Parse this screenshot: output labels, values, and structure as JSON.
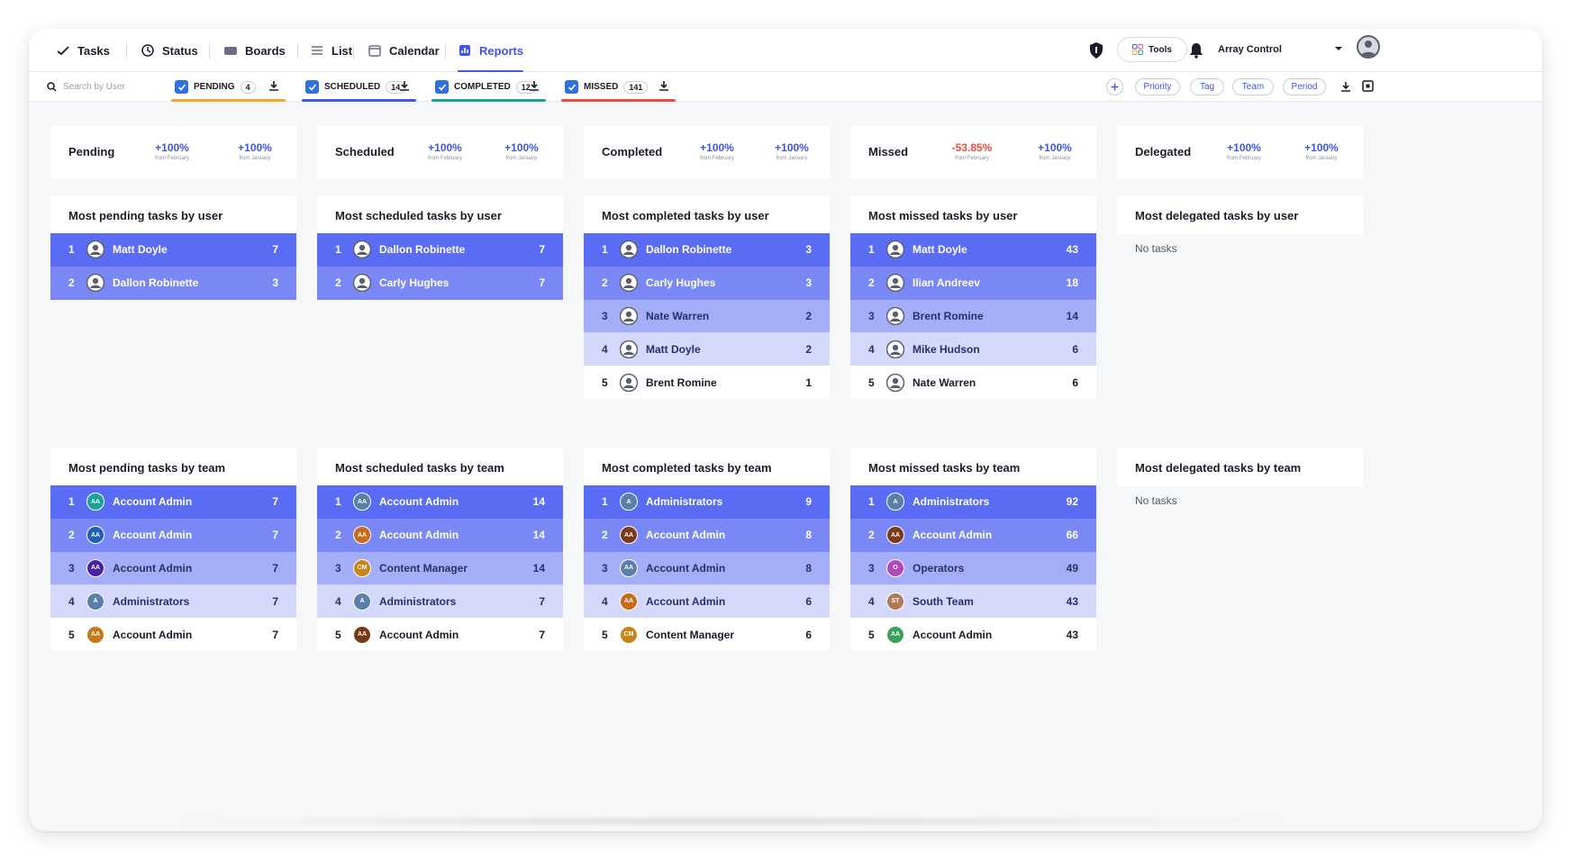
{
  "nav": {
    "tabs": [
      {
        "label": "Tasks",
        "icon": "check-icon"
      },
      {
        "label": "Status",
        "icon": "status-icon"
      },
      {
        "label": "Boards",
        "icon": "boards-icon"
      },
      {
        "label": "List",
        "icon": "list-icon"
      },
      {
        "label": "Calendar",
        "icon": "calendar-icon"
      },
      {
        "label": "Reports",
        "icon": "reports-icon",
        "active": true
      }
    ],
    "tools_label": "Tools",
    "org_name": "Array Control"
  },
  "filters": {
    "search_placeholder": "Search by User",
    "tabs": [
      {
        "label": "PENDING",
        "count": "4",
        "color": "#f5a623"
      },
      {
        "label": "SCHEDULED",
        "count": "14",
        "color": "#3f56e6"
      },
      {
        "label": "COMPLETED",
        "count": "12",
        "color": "#1aa39a"
      },
      {
        "label": "MISSED",
        "count": "141",
        "color": "#ee4b3f"
      }
    ],
    "pills": [
      "Priority",
      "Tag",
      "Team",
      "Period"
    ]
  },
  "stats": [
    {
      "title": "Pending",
      "v1": "+100%",
      "l1": "from February",
      "v2": "+100%",
      "l2": "from January"
    },
    {
      "title": "Scheduled",
      "v1": "+100%",
      "l1": "from February",
      "v2": "+100%",
      "l2": "from January"
    },
    {
      "title": "Completed",
      "v1": "+100%",
      "l1": "from February",
      "v2": "+100%",
      "l2": "from January"
    },
    {
      "title": "Missed",
      "v1": "-53.85%",
      "l1": "from February",
      "v2": "+100%",
      "l2": "from January"
    },
    {
      "title": "Delegated",
      "v1": "+100%",
      "l1": "from February",
      "v2": "+100%",
      "l2": "from January"
    }
  ],
  "user_lists": [
    {
      "title": "Most pending tasks by user",
      "rows": [
        {
          "rank": "1",
          "name": "Matt Doyle",
          "count": "7"
        },
        {
          "rank": "2",
          "name": "Dallon Robinette",
          "count": "3"
        }
      ]
    },
    {
      "title": "Most scheduled tasks by user",
      "rows": [
        {
          "rank": "1",
          "name": "Dallon Robinette",
          "count": "7"
        },
        {
          "rank": "2",
          "name": "Carly Hughes",
          "count": "7"
        }
      ]
    },
    {
      "title": "Most completed tasks by user",
      "rows": [
        {
          "rank": "1",
          "name": "Dallon Robinette",
          "count": "3"
        },
        {
          "rank": "2",
          "name": "Carly Hughes",
          "count": "3"
        },
        {
          "rank": "3",
          "name": "Nate Warren",
          "count": "2"
        },
        {
          "rank": "4",
          "name": "Matt Doyle",
          "count": "2"
        },
        {
          "rank": "5",
          "name": "Brent Romine",
          "count": "1"
        }
      ]
    },
    {
      "title": "Most missed tasks by user",
      "rows": [
        {
          "rank": "1",
          "name": "Matt Doyle",
          "count": "43"
        },
        {
          "rank": "2",
          "name": "Ilian Andreev",
          "count": "18"
        },
        {
          "rank": "3",
          "name": "Brent Romine",
          "count": "14"
        },
        {
          "rank": "4",
          "name": "Mike Hudson",
          "count": "6"
        },
        {
          "rank": "5",
          "name": "Nate Warren",
          "count": "6"
        }
      ]
    },
    {
      "title": "Most delegated tasks by user",
      "rows": [],
      "empty": "No tasks"
    }
  ],
  "team_lists": [
    {
      "title": "Most pending tasks by team",
      "rows": [
        {
          "rank": "1",
          "initials": "AA",
          "color": "#1aa39a",
          "name": "Account Admin",
          "count": "7"
        },
        {
          "rank": "2",
          "initials": "AA",
          "color": "#1f5fb8",
          "name": "Account Admin",
          "count": "7"
        },
        {
          "rank": "3",
          "initials": "AA",
          "color": "#4b1fa8",
          "name": "Account Admin",
          "count": "7"
        },
        {
          "rank": "4",
          "initials": "A",
          "color": "#5a7fa8",
          "name": "Administrators",
          "count": "7"
        },
        {
          "rank": "5",
          "initials": "AA",
          "color": "#c77a1a",
          "name": "Account Admin",
          "count": "7"
        }
      ]
    },
    {
      "title": "Most scheduled tasks by team",
      "rows": [
        {
          "rank": "1",
          "initials": "AA",
          "color": "#5a7fa8",
          "name": "Account Admin",
          "count": "14"
        },
        {
          "rank": "2",
          "initials": "AA",
          "color": "#c76a1a",
          "name": "Account Admin",
          "count": "14"
        },
        {
          "rank": "3",
          "initials": "CM",
          "color": "#c7861a",
          "name": "Content Manager",
          "count": "14"
        },
        {
          "rank": "4",
          "initials": "A",
          "color": "#5a7fa8",
          "name": "Administrators",
          "count": "7"
        },
        {
          "rank": "5",
          "initials": "AA",
          "color": "#7a3a1a",
          "name": "Account Admin",
          "count": "7"
        }
      ]
    },
    {
      "title": "Most completed tasks by team",
      "rows": [
        {
          "rank": "1",
          "initials": "A",
          "color": "#5a7fa8",
          "name": "Administrators",
          "count": "9"
        },
        {
          "rank": "2",
          "initials": "AA",
          "color": "#7a3a1a",
          "name": "Account Admin",
          "count": "8"
        },
        {
          "rank": "3",
          "initials": "AA",
          "color": "#5a7fa8",
          "name": "Account Admin",
          "count": "8"
        },
        {
          "rank": "4",
          "initials": "AA",
          "color": "#c76a1a",
          "name": "Account Admin",
          "count": "6"
        },
        {
          "rank": "5",
          "initials": "CM",
          "color": "#c7861a",
          "name": "Content Manager",
          "count": "6"
        }
      ]
    },
    {
      "title": "Most missed tasks by team",
      "rows": [
        {
          "rank": "1",
          "initials": "A",
          "color": "#5a7fa8",
          "name": "Administrators",
          "count": "92"
        },
        {
          "rank": "2",
          "initials": "AA",
          "color": "#7a3a1a",
          "name": "Account Admin",
          "count": "66"
        },
        {
          "rank": "3",
          "initials": "O",
          "color": "#b04ab8",
          "name": "Operators",
          "count": "49"
        },
        {
          "rank": "4",
          "initials": "ST",
          "color": "#b07a5a",
          "name": "South Team",
          "count": "43"
        },
        {
          "rank": "5",
          "initials": "AA",
          "color": "#3aa35a",
          "name": "Account Admin",
          "count": "43"
        }
      ]
    },
    {
      "title": "Most delegated tasks by team",
      "rows": [],
      "empty": "No tasks"
    }
  ]
}
